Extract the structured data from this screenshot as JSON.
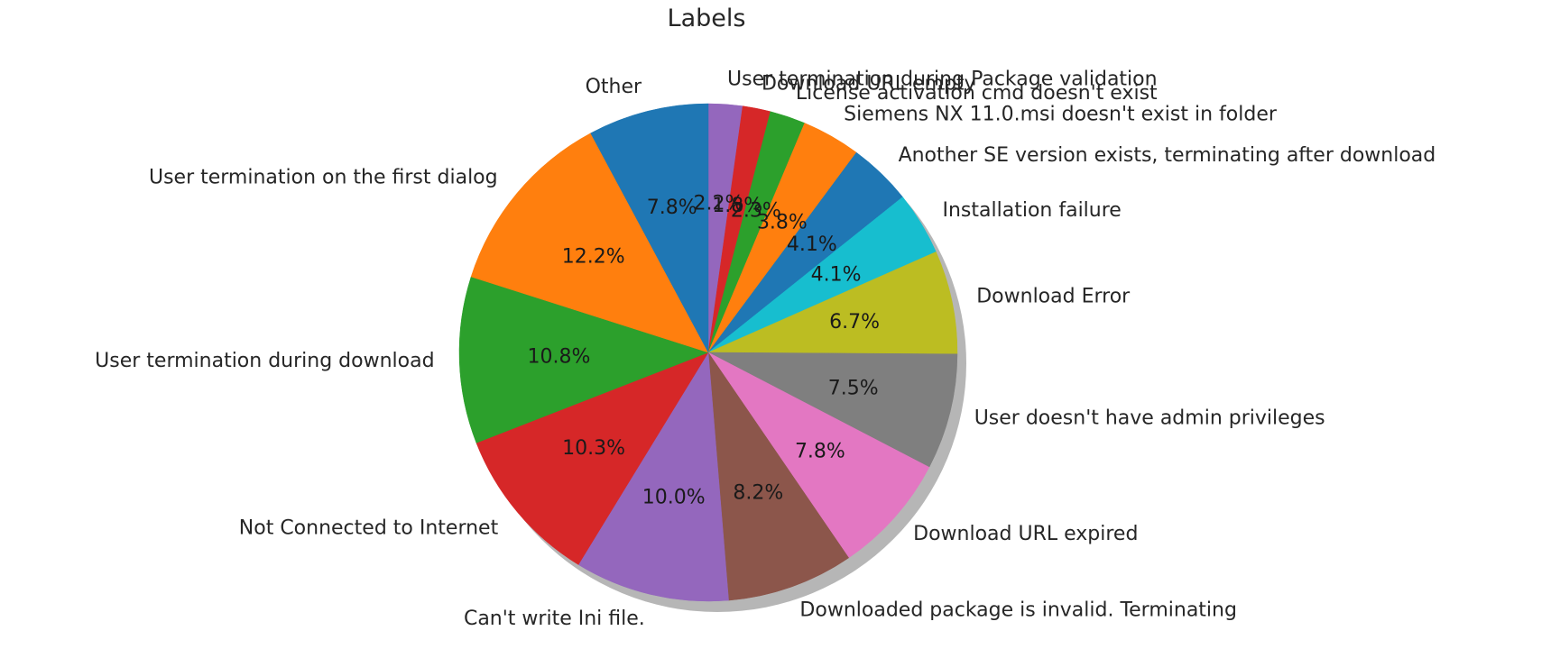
{
  "chart_data": {
    "type": "pie",
    "title": "Labels",
    "start_angle_deg": 90,
    "direction": "clockwise",
    "shadow": true,
    "slices": [
      {
        "label": "User termination during Package validation",
        "value": 2.2,
        "pct_text": "2.2%",
        "color": "#9467bd"
      },
      {
        "label": "Download URL empty",
        "value": 1.8,
        "pct_text": "1.8%",
        "color": "#d62728"
      },
      {
        "label": "License activation cmd doesn't exist",
        "value": 2.3,
        "pct_text": "2.3%",
        "color": "#2ca02c"
      },
      {
        "label": "Siemens NX 11.0.msi doesn't exist in folder",
        "value": 3.8,
        "pct_text": "3.8%",
        "color": "#ff7f0e"
      },
      {
        "label": "Another SE version exists, terminating after download",
        "value": 4.1,
        "pct_text": "4.1%",
        "color": "#1f77b4"
      },
      {
        "label": "Installation failure",
        "value": 4.1,
        "pct_text": "4.1%",
        "color": "#17becf"
      },
      {
        "label": "Download Error",
        "value": 6.7,
        "pct_text": "6.7%",
        "color": "#bcbd22"
      },
      {
        "label": "User doesn't have admin privileges",
        "value": 7.5,
        "pct_text": "7.5%",
        "color": "#7f7f7f"
      },
      {
        "label": "Download URL expired",
        "value": 7.8,
        "pct_text": "7.8%",
        "color": "#e377c2"
      },
      {
        "label": "Downloaded package is invalid. Terminating",
        "value": 8.2,
        "pct_text": "8.2%",
        "color": "#8c564b"
      },
      {
        "label": "Can't write Ini file.",
        "value": 10.0,
        "pct_text": "10.0%",
        "color": "#9467bd"
      },
      {
        "label": "Not Connected to Internet",
        "value": 10.3,
        "pct_text": "10.3%",
        "color": "#d62728"
      },
      {
        "label": "User termination during download",
        "value": 10.8,
        "pct_text": "10.8%",
        "color": "#2ca02c"
      },
      {
        "label": "User termination on the first dialog",
        "value": 12.2,
        "pct_text": "12.2%",
        "color": "#ff7f0e"
      },
      {
        "label": "Other",
        "value": 7.8,
        "pct_text": "7.8%",
        "color": "#1f77b4"
      }
    ]
  }
}
